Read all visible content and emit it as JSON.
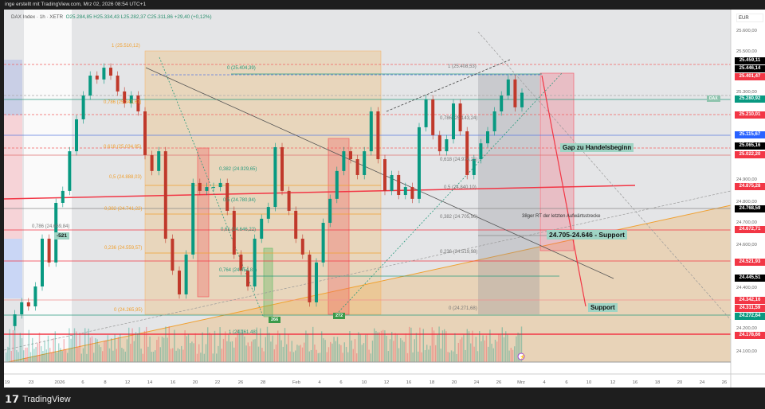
{
  "header": {
    "attribution": "inge erstellt mit TradingView.com, Mrz 02, 2026 08:54 UTC+1"
  },
  "legend": {
    "symbol": "DAX Index · 1h · XETR",
    "open": "O25.284,85",
    "high": "H25.334,43",
    "low": "L25.282,37",
    "close": "C25.311,86",
    "change": "+29,40 (+0,12%)"
  },
  "axis": {
    "currency": "EUR",
    "ticks": [
      "25.600,00",
      "25.500,00",
      "25.300,00",
      "24.900,00",
      "24.800,00",
      "24.700,00",
      "24.600,00",
      "24.400,00",
      "24.200,00",
      "24.100,00"
    ],
    "tick_values": [
      25600,
      25500,
      25300,
      24900,
      24800,
      24700,
      24600,
      24400,
      24200,
      24100
    ],
    "tags": [
      {
        "text": "25.459,11",
        "price": 25459.11,
        "color": "#000000"
      },
      {
        "text": "25.446,14",
        "price": 25446.14,
        "color": "#000000"
      },
      {
        "text": "25.401,47",
        "price": 25401.47,
        "color": "#f23645"
      },
      {
        "text": "25.280,92",
        "price": 25280.92,
        "color": "#089981"
      },
      {
        "text": "25.210,01",
        "price": 25210.01,
        "color": "#f23645"
      },
      {
        "text": "25.115,67",
        "price": 25115.67,
        "color": "#2962ff"
      },
      {
        "text": "25.065,16",
        "price": 25065.16,
        "color": "#000000"
      },
      {
        "text": "25.022,20",
        "price": 25022.2,
        "color": "#f23645"
      },
      {
        "text": "24.875,28",
        "price": 24875.28,
        "color": "#f23645"
      },
      {
        "text": "24.768,59",
        "price": 24768.59,
        "color": "#000000"
      },
      {
        "text": "24.672,71",
        "price": 24672.71,
        "color": "#f23645"
      },
      {
        "text": "24.521,93",
        "price": 24521.93,
        "color": "#f23645"
      },
      {
        "text": "24.445,51",
        "price": 24445.51,
        "color": "#000000"
      },
      {
        "text": "24.342,16",
        "price": 24342.16,
        "color": "#f23645"
      },
      {
        "text": "24.311,59",
        "price": 24311.59,
        "color": "#f23645"
      },
      {
        "text": "24.272,64",
        "price": 24272.64,
        "color": "#089981"
      },
      {
        "text": "24.178,66",
        "price": 24178.66,
        "color": "#f23645"
      }
    ],
    "dax_tag": "DAX"
  },
  "dates": [
    "19",
    "23",
    "2026",
    "6",
    "8",
    "12",
    "14",
    "16",
    "20",
    "22",
    "26",
    "28",
    "Feb",
    "4",
    "6",
    "10",
    "12",
    "16",
    "18",
    "20",
    "24",
    "26",
    "Mrz",
    "4",
    "6",
    "10",
    "12",
    "16",
    "18",
    "20",
    "24",
    "26"
  ],
  "fib_orange": [
    "1 (25.510,12)",
    "0,786 (25.343,67)",
    "0,618 (25.034,85)",
    "0,5 (24.888,03)",
    "0,382 (24.741,22)",
    "0,236 (24.559,57)",
    "0 (24.265,95)"
  ],
  "fib_green": [
    "0 (25.404,39)",
    "0,382 (24.929,65)",
    "0,5 (24.780,94)",
    "0,61 (24.646,22)",
    "0,764 (24.454,82)",
    "1 (24.161,48)"
  ],
  "fib_gray": [
    "1 (25.408,53)",
    "0,786 (25.143,24)",
    "0,618 (24.974,25)",
    "0,5 (24.840,10)",
    "0,382 (24.705,96)",
    "0,236 (24.519,98)",
    "0 (24.271,68)"
  ],
  "fib_left": "0,786 (24.669,84)",
  "badges": {
    "minus": "-521",
    "b1": "266",
    "b2": "272"
  },
  "notes": {
    "gap": "Gap zu Handelsbeginn",
    "rt": "38ger RT der letzten Aufwärtsstrecke",
    "zone": "24.705-24.646 - Support",
    "support": "Support"
  },
  "chart_data": {
    "type": "candlestick",
    "closes": [
      24223,
      24278,
      24334,
      24315,
      24408,
      24631,
      24520,
      24798,
      24854,
      25039,
      25188,
      25299,
      25392,
      25374,
      25429,
      25392,
      25318,
      25262,
      25299,
      25225,
      25021,
      24947,
      25039,
      24631,
      24482,
      24371,
      24557,
      24891,
      24854,
      24872,
      24872,
      24891,
      24761,
      24557,
      24482,
      24408,
      24631,
      24724,
      24779,
      25058,
      24854,
      24761,
      24631,
      24557,
      24334,
      24520,
      24705,
      24817,
      24947,
      25039,
      25002,
      24928,
      25039,
      25225,
      25002,
      24854,
      24928,
      24835,
      24872,
      24817,
      25151,
      25281,
      25114,
      25039,
      25095,
      25262,
      25132,
      24928,
      25002,
      25076,
      25132,
      25225,
      25299,
      25374,
      25244,
      25312
    ]
  },
  "colors": {
    "up": "#089981",
    "down": "#c0392b"
  },
  "brand": "TradingView"
}
